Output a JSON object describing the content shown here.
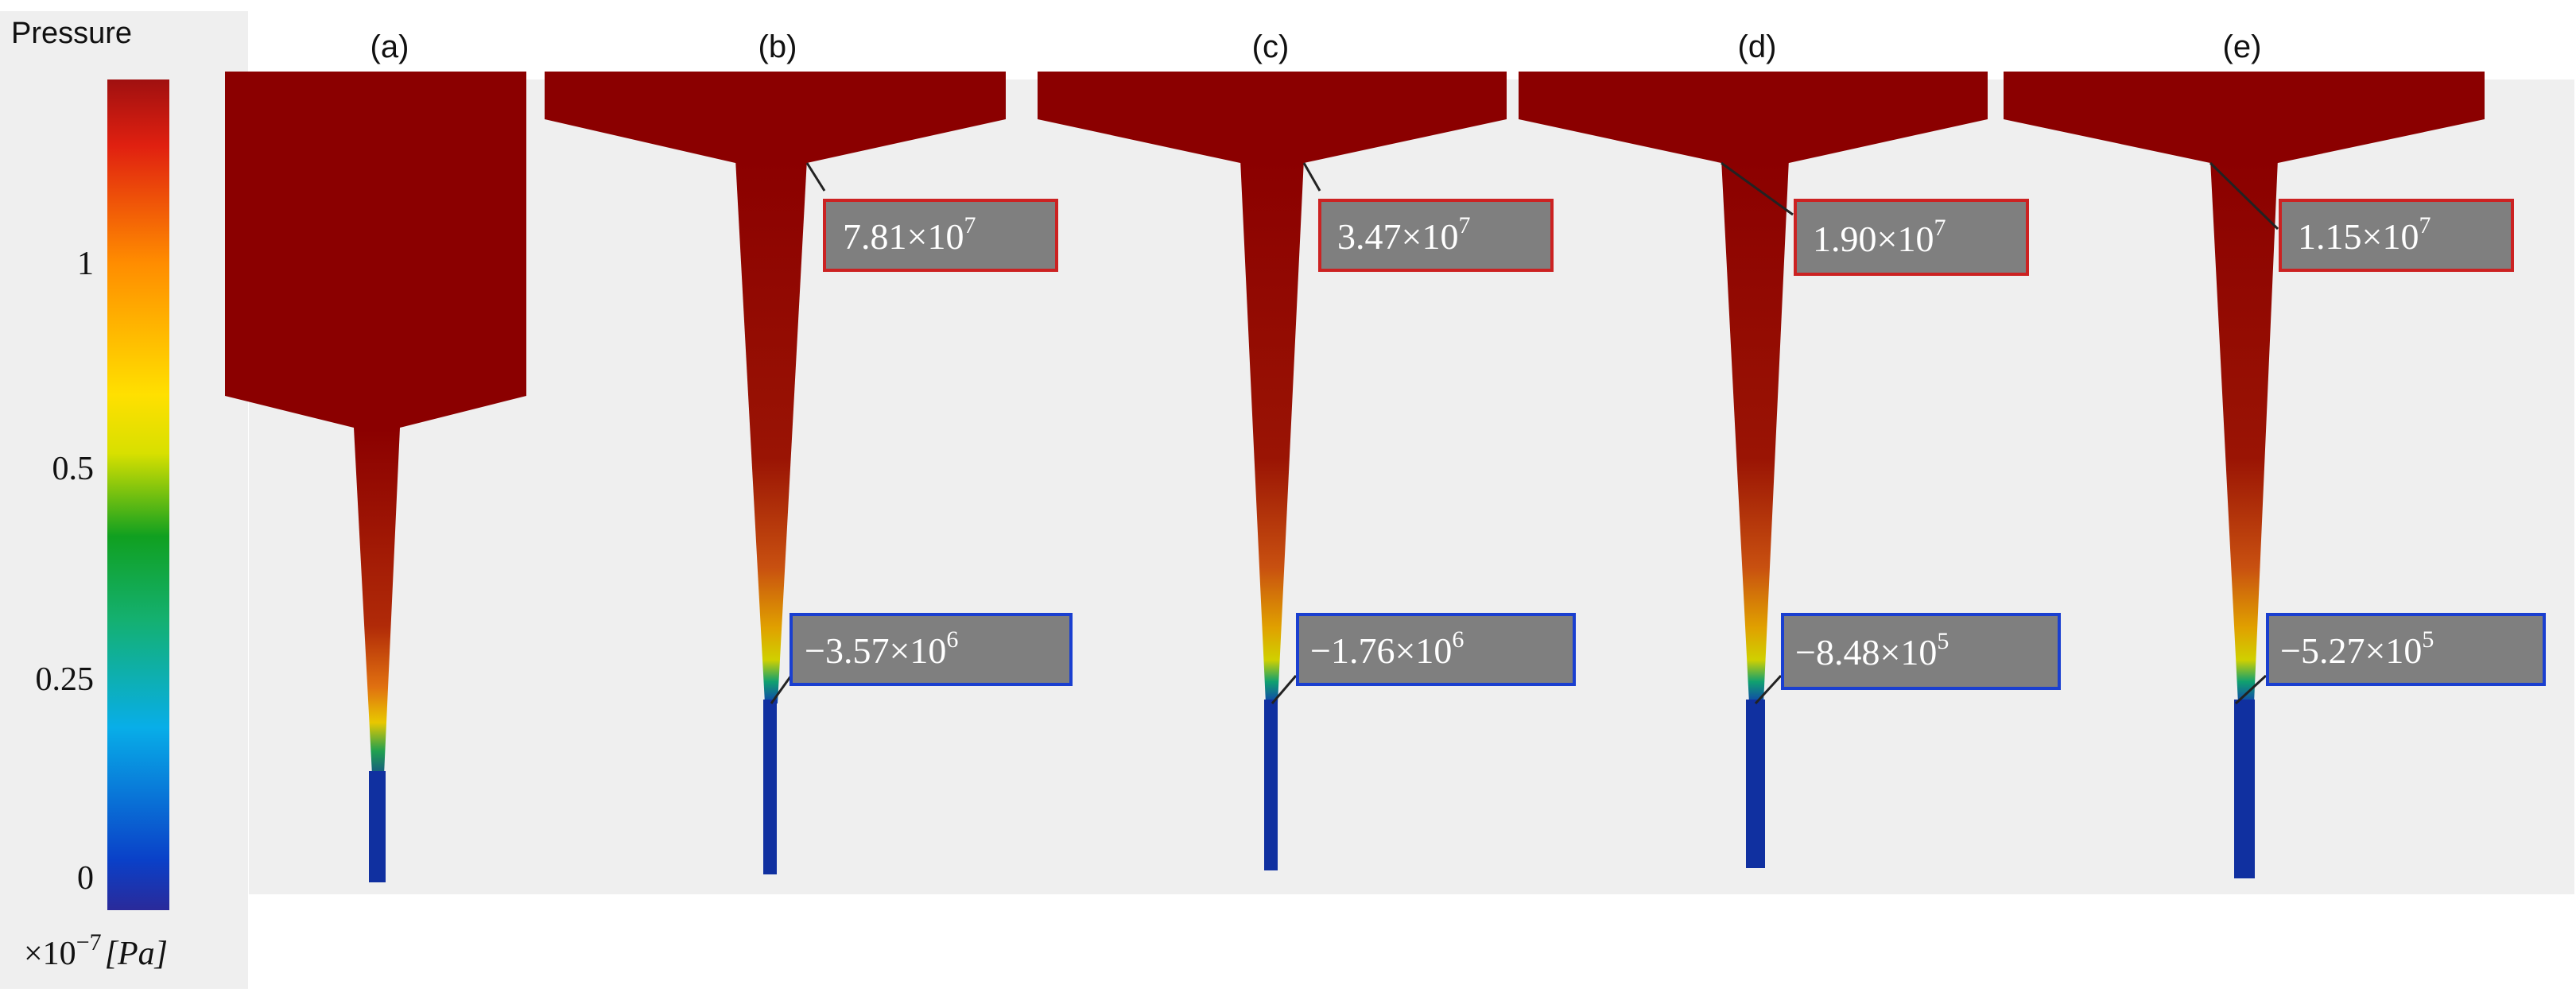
{
  "colorbar": {
    "title": "Pressure",
    "ticks": [
      "0",
      "0.25",
      "0.5",
      "1"
    ],
    "unit_prefix": "×10",
    "unit_exp": "−7",
    "unit_suffix": "[Pa]"
  },
  "panels": [
    {
      "label": "(a)"
    },
    {
      "label": "(b)",
      "max_mant": "7.81×10",
      "max_exp": "7",
      "min_mant": "−3.57×10",
      "min_exp": "6"
    },
    {
      "label": "(c)",
      "max_mant": "3.47×10",
      "max_exp": "7",
      "min_mant": "−1.76×10",
      "min_exp": "6"
    },
    {
      "label": "(d)",
      "max_mant": "1.90×10",
      "max_exp": "7",
      "min_mant": "−8.48×10",
      "min_exp": "5"
    },
    {
      "label": "(e)",
      "max_mant": "1.15×10",
      "max_exp": "7",
      "min_mant": "−5.27×10",
      "min_exp": "5"
    }
  ],
  "colors": {
    "high": "#8b0000",
    "low": "#1030a0",
    "annotation_bg": "#7f7f7f",
    "max_border": "#cc2222",
    "min_border": "#1a3fd0",
    "panel_bg": "#efefef"
  }
}
